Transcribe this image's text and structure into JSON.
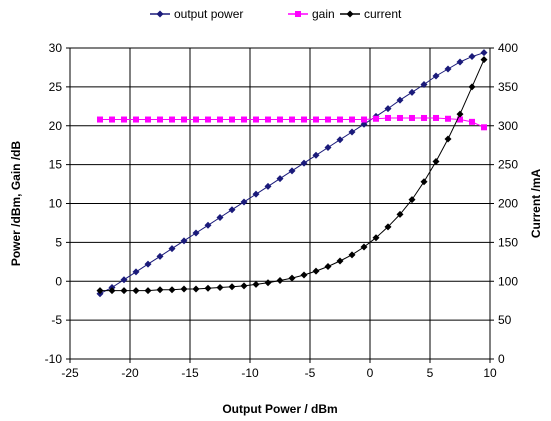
{
  "chart_data": {
    "type": "line",
    "title": "",
    "xlabel": "Output Power / dBm",
    "ylabel": "Power /dBm, Gain /dB",
    "y2label": "Current /mA",
    "xlim": [
      -25,
      10
    ],
    "ylim": [
      -10,
      30
    ],
    "y2lim": [
      0,
      400
    ],
    "x_ticks": [
      -25,
      -20,
      -15,
      -10,
      -5,
      0,
      5,
      10
    ],
    "y_ticks": [
      -10,
      -5,
      0,
      5,
      10,
      15,
      20,
      25,
      30
    ],
    "y2_ticks": [
      0,
      50,
      100,
      150,
      200,
      250,
      300,
      350,
      400
    ],
    "grid": true,
    "legend_position": "top",
    "series": [
      {
        "name": "output power",
        "axis": "left",
        "color": "#1a1a7a",
        "marker": "diamond",
        "x": [
          -22.5,
          -21.5,
          -20.5,
          -19.5,
          -18.5,
          -17.5,
          -16.5,
          -15.5,
          -14.5,
          -13.5,
          -12.5,
          -11.5,
          -10.5,
          -9.5,
          -8.5,
          -7.5,
          -6.5,
          -5.5,
          -4.5,
          -3.5,
          -2.5,
          -1.5,
          -0.5,
          0.5,
          1.5,
          2.5,
          3.5,
          4.5,
          5.5,
          6.5,
          7.5,
          8.5,
          9.5
        ],
        "y": [
          -1.6,
          -0.8,
          0.2,
          1.2,
          2.2,
          3.2,
          4.2,
          5.2,
          6.2,
          7.2,
          8.2,
          9.2,
          10.2,
          11.2,
          12.2,
          13.2,
          14.2,
          15.2,
          16.2,
          17.2,
          18.2,
          19.2,
          20.2,
          21.2,
          22.2,
          23.3,
          24.3,
          25.3,
          26.4,
          27.3,
          28.2,
          28.9,
          29.4
        ]
      },
      {
        "name": "gain",
        "axis": "left",
        "color": "#ff00ff",
        "marker": "square",
        "x": [
          -22.5,
          -21.5,
          -20.5,
          -19.5,
          -18.5,
          -17.5,
          -16.5,
          -15.5,
          -14.5,
          -13.5,
          -12.5,
          -11.5,
          -10.5,
          -9.5,
          -8.5,
          -7.5,
          -6.5,
          -5.5,
          -4.5,
          -3.5,
          -2.5,
          -1.5,
          -0.5,
          0.5,
          1.5,
          2.5,
          3.5,
          4.5,
          5.5,
          6.5,
          7.5,
          8.5,
          9.5
        ],
        "y": [
          20.8,
          20.8,
          20.8,
          20.8,
          20.8,
          20.8,
          20.8,
          20.8,
          20.8,
          20.8,
          20.8,
          20.8,
          20.8,
          20.8,
          20.8,
          20.8,
          20.8,
          20.8,
          20.8,
          20.8,
          20.8,
          20.8,
          20.8,
          20.9,
          21.0,
          21.0,
          21.0,
          21.0,
          21.0,
          20.9,
          20.8,
          20.5,
          19.8
        ]
      },
      {
        "name": "current",
        "axis": "right",
        "color": "#000000",
        "marker": "diamond",
        "x": [
          -22.5,
          -21.5,
          -20.5,
          -19.5,
          -18.5,
          -17.5,
          -16.5,
          -15.5,
          -14.5,
          -13.5,
          -12.5,
          -11.5,
          -10.5,
          -9.5,
          -8.5,
          -7.5,
          -6.5,
          -5.5,
          -4.5,
          -3.5,
          -2.5,
          -1.5,
          -0.5,
          0.5,
          1.5,
          2.5,
          3.5,
          4.5,
          5.5,
          6.5,
          7.5,
          8.5,
          9.5
        ],
        "y": [
          88,
          88,
          88,
          88,
          88,
          89,
          89,
          90,
          90,
          91,
          92,
          93,
          94,
          96,
          98,
          101,
          104,
          108,
          113,
          119,
          126,
          134,
          144,
          156,
          170,
          186,
          205,
          228,
          254,
          283,
          315,
          350,
          385
        ]
      }
    ]
  }
}
